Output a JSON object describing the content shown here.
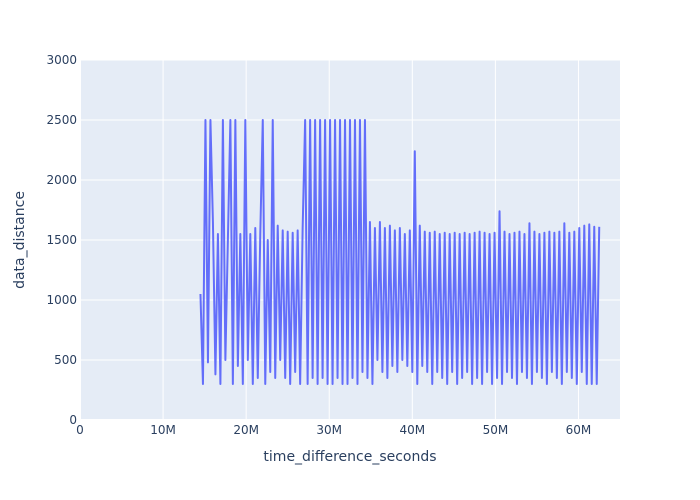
{
  "chart_data": {
    "type": "line",
    "xlabel": "time_difference_seconds",
    "ylabel": "data_distance",
    "xlim": [
      0,
      65000000
    ],
    "ylim": [
      0,
      3000
    ],
    "x_ticks": [
      {
        "value": 0,
        "label": "0"
      },
      {
        "value": 10000000,
        "label": "10M"
      },
      {
        "value": 20000000,
        "label": "20M"
      },
      {
        "value": 30000000,
        "label": "30M"
      },
      {
        "value": 40000000,
        "label": "40M"
      },
      {
        "value": 50000000,
        "label": "50M"
      },
      {
        "value": 60000000,
        "label": "60M"
      }
    ],
    "y_ticks": [
      {
        "value": 0,
        "label": "0"
      },
      {
        "value": 500,
        "label": "500"
      },
      {
        "value": 1000,
        "label": "1000"
      },
      {
        "value": 1500,
        "label": "1500"
      },
      {
        "value": 2000,
        "label": "2000"
      },
      {
        "value": 2500,
        "label": "2500"
      },
      {
        "value": 3000,
        "label": "3000"
      }
    ],
    "grid": true,
    "series": [
      {
        "color": "#636efa",
        "x": [
          14500000,
          14800000,
          15100000,
          15400000,
          15700000,
          16000000,
          16300000,
          16600000,
          16900000,
          17200000,
          17500000,
          17800000,
          18100000,
          18400000,
          18700000,
          19000000,
          19300000,
          19600000,
          19900000,
          20200000,
          20500000,
          20800000,
          21100000,
          21400000,
          21700000,
          22000000,
          22300000,
          22600000,
          22900000,
          23200000,
          23500000,
          23800000,
          24100000,
          24400000,
          24700000,
          25000000,
          25300000,
          25600000,
          25900000,
          26200000,
          26500000,
          26800000,
          27100000,
          27400000,
          27700000,
          28000000,
          28300000,
          28600000,
          28900000,
          29200000,
          29500000,
          29800000,
          30100000,
          30400000,
          30700000,
          31000000,
          31300000,
          31600000,
          31900000,
          32200000,
          32500000,
          32800000,
          33100000,
          33400000,
          33700000,
          34000000,
          34300000,
          34600000,
          34900000,
          35200000,
          35500000,
          35800000,
          36100000,
          36400000,
          36700000,
          37000000,
          37300000,
          37600000,
          37900000,
          38200000,
          38500000,
          38800000,
          39100000,
          39400000,
          39700000,
          40000000,
          40300000,
          40600000,
          40900000,
          41200000,
          41500000,
          41800000,
          42100000,
          42400000,
          42700000,
          43000000,
          43300000,
          43600000,
          43900000,
          44200000,
          44500000,
          44800000,
          45100000,
          45400000,
          45700000,
          46000000,
          46300000,
          46600000,
          46900000,
          47200000,
          47500000,
          47800000,
          48100000,
          48400000,
          48700000,
          49000000,
          49300000,
          49600000,
          49900000,
          50200000,
          50500000,
          50800000,
          51100000,
          51400000,
          51700000,
          52000000,
          52300000,
          52600000,
          52900000,
          53200000,
          53500000,
          53800000,
          54100000,
          54400000,
          54700000,
          55000000,
          55300000,
          55600000,
          55900000,
          56200000,
          56500000,
          56800000,
          57100000,
          57400000,
          57700000,
          58000000,
          58300000,
          58600000,
          58900000,
          59200000,
          59500000,
          59800000,
          60100000,
          60400000,
          60700000,
          61000000,
          61300000,
          61600000,
          61900000,
          62200000,
          62500000
        ],
        "y": [
          1050,
          300,
          2500,
          480,
          2500,
          1650,
          380,
          1550,
          300,
          2500,
          500,
          1500,
          2500,
          300,
          2500,
          450,
          1550,
          300,
          2500,
          500,
          1550,
          300,
          1600,
          350,
          1550,
          2500,
          300,
          1500,
          400,
          2500,
          350,
          1620,
          500,
          1580,
          350,
          1570,
          300,
          1560,
          400,
          1580,
          300,
          1600,
          2500,
          300,
          2500,
          350,
          2500,
          300,
          2500,
          350,
          2500,
          300,
          2500,
          300,
          2500,
          350,
          2500,
          300,
          2500,
          300,
          2500,
          350,
          2500,
          300,
          2500,
          400,
          2500,
          350,
          1650,
          300,
          1600,
          500,
          1650,
          400,
          1600,
          350,
          1620,
          450,
          1580,
          400,
          1600,
          500,
          1550,
          450,
          1580,
          400,
          2240,
          300,
          1620,
          450,
          1570,
          400,
          1560,
          300,
          1570,
          400,
          1550,
          350,
          1560,
          300,
          1550,
          400,
          1560,
          300,
          1550,
          350,
          1560,
          400,
          1550,
          300,
          1560,
          350,
          1570,
          300,
          1560,
          400,
          1550,
          300,
          1560,
          350,
          1740,
          300,
          1570,
          400,
          1550,
          350,
          1560,
          300,
          1570,
          400,
          1550,
          350,
          1640,
          300,
          1570,
          400,
          1550,
          350,
          1560,
          300,
          1570,
          400,
          1560,
          350,
          1570,
          300,
          1640,
          400,
          1560,
          350,
          1570,
          300,
          1600,
          400,
          1620,
          300,
          1630,
          300,
          1610,
          300,
          1610
        ]
      }
    ]
  }
}
